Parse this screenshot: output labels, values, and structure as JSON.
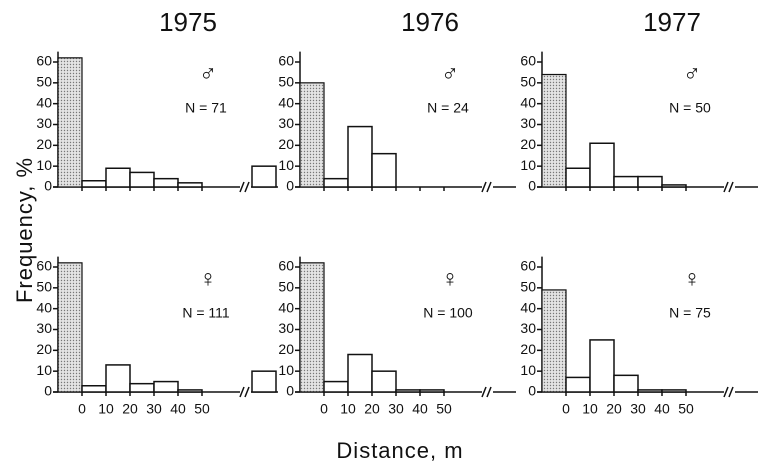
{
  "labels": {
    "ylabel": "Frequency, %",
    "xlabel": "Distance, m"
  },
  "chart_data": [
    {
      "type": "histogram",
      "title": "1975",
      "symbol": "♂",
      "annotation": "N = 71",
      "zero_value": 62,
      "bins": [
        0,
        10,
        20,
        30,
        40,
        50
      ],
      "values": [
        3,
        9,
        7,
        4,
        2
      ],
      "beyond_value": 10,
      "ylim": [
        0,
        65
      ],
      "yticks": [
        0,
        10,
        20,
        30,
        40,
        50,
        60
      ],
      "xticks": [
        0,
        10,
        20,
        30,
        40,
        50
      ]
    },
    {
      "type": "histogram",
      "title": "1976",
      "symbol": "♂",
      "annotation": "N = 24",
      "zero_value": 50,
      "bins": [
        0,
        10,
        20,
        30,
        40,
        50
      ],
      "values": [
        4,
        29,
        16,
        0,
        0
      ],
      "ylim": [
        0,
        65
      ],
      "yticks": [
        0,
        10,
        20,
        30,
        40,
        50,
        60
      ],
      "xticks": [
        0,
        10,
        20,
        30,
        40,
        50
      ]
    },
    {
      "type": "histogram",
      "title": "1977",
      "symbol": "♂",
      "annotation": "N = 50",
      "zero_value": 54,
      "bins": [
        0,
        10,
        20,
        30,
        40,
        50
      ],
      "values": [
        9,
        21,
        5,
        5,
        1
      ],
      "ylim": [
        0,
        65
      ],
      "yticks": [
        0,
        10,
        20,
        30,
        40,
        50,
        60
      ],
      "xticks": [
        0,
        10,
        20,
        30,
        40,
        50
      ]
    },
    {
      "type": "histogram",
      "symbol": "♀",
      "annotation": "N = 111",
      "zero_value": 62,
      "bins": [
        0,
        10,
        20,
        30,
        40,
        50
      ],
      "values": [
        3,
        13,
        4,
        5,
        1
      ],
      "beyond_value": 10,
      "ylim": [
        0,
        65
      ],
      "yticks": [
        0,
        10,
        20,
        30,
        40,
        50,
        60
      ],
      "xticks": [
        0,
        10,
        20,
        30,
        40,
        50
      ],
      "show_xtick_labels": true
    },
    {
      "type": "histogram",
      "symbol": "♀",
      "annotation": "N = 100",
      "zero_value": 62,
      "bins": [
        0,
        10,
        20,
        30,
        40,
        50
      ],
      "values": [
        5,
        18,
        10,
        1,
        1
      ],
      "ylim": [
        0,
        65
      ],
      "yticks": [
        0,
        10,
        20,
        30,
        40,
        50,
        60
      ],
      "xticks": [
        0,
        10,
        20,
        30,
        40,
        50
      ],
      "show_xtick_labels": true
    },
    {
      "type": "histogram",
      "symbol": "♀",
      "annotation": "N = 75",
      "zero_value": 49,
      "bins": [
        0,
        10,
        20,
        30,
        40,
        50
      ],
      "values": [
        7,
        25,
        8,
        1,
        1
      ],
      "ylim": [
        0,
        65
      ],
      "yticks": [
        0,
        10,
        20,
        30,
        40,
        50,
        60
      ],
      "xticks": [
        0,
        10,
        20,
        30,
        40,
        50
      ],
      "show_xtick_labels": true
    }
  ]
}
